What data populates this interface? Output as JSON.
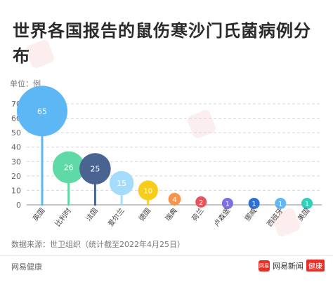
{
  "title": "世界各国报告的鼠伤寒沙门氏菌病例分布",
  "unit_label": "单位：",
  "unit_value": "例",
  "source": "数据来源：世卫组织（统计截至2022年4月25日）",
  "brand_left": "网易健康",
  "brand_right_logo": "网易",
  "brand_right_name": "网易新闻",
  "brand_right_tag": "健康",
  "watermark": "网易健康",
  "colors": {
    "grid": "#d8d8d8",
    "axis": "#888888"
  },
  "chart_data": {
    "type": "bubble-lollipop",
    "title": "世界各国报告的鼠伤寒沙门氏菌病例分布",
    "ylabel": "单位：例",
    "ylim": [
      0,
      70
    ],
    "yticks": [
      0,
      10,
      20,
      30,
      40,
      50,
      60,
      70
    ],
    "grid": true,
    "categories": [
      "英国",
      "比利时",
      "法国",
      "爱尔兰",
      "德国",
      "瑞典",
      "荷兰",
      "卢森堡",
      "挪威",
      "西班牙",
      "美国"
    ],
    "values": [
      65,
      26,
      25,
      15,
      10,
      4,
      2,
      1,
      1,
      1,
      1
    ],
    "colors": [
      "#5db7f4",
      "#5fd9a5",
      "#4a6491",
      "#a5dcfb",
      "#f8cc1a",
      "#f5954c",
      "#e8525a",
      "#7c6fe3",
      "#2f70d7",
      "#64b5f0",
      "#31cfb8"
    ]
  }
}
